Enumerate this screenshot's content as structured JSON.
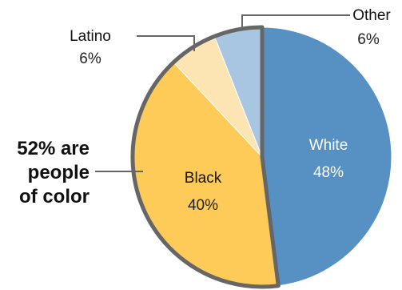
{
  "chart_data": {
    "type": "pie",
    "slices": [
      {
        "name": "White",
        "value": 48,
        "value_label": "48%",
        "color": "#5790c2",
        "label_color": "#ffffff",
        "value_color": "#ffffff"
      },
      {
        "name": "Black",
        "value": 40,
        "value_label": "40%",
        "color": "#fecb59",
        "label_color": "#111111",
        "value_color": "#222222"
      },
      {
        "name": "Latino",
        "value": 6,
        "value_label": "6%",
        "color": "#fde4b3",
        "label_color": "#111111",
        "value_color": "#222222"
      },
      {
        "name": "Other",
        "value": 6,
        "value_label": "6%",
        "color": "#a8c6e2",
        "label_color": "#111111",
        "value_color": "#222222"
      }
    ],
    "annotation": {
      "lines": [
        "52% are",
        "people",
        "of color"
      ],
      "highlight_slices": [
        "Black",
        "Latino",
        "Other"
      ],
      "outline_color": "#666666"
    }
  }
}
